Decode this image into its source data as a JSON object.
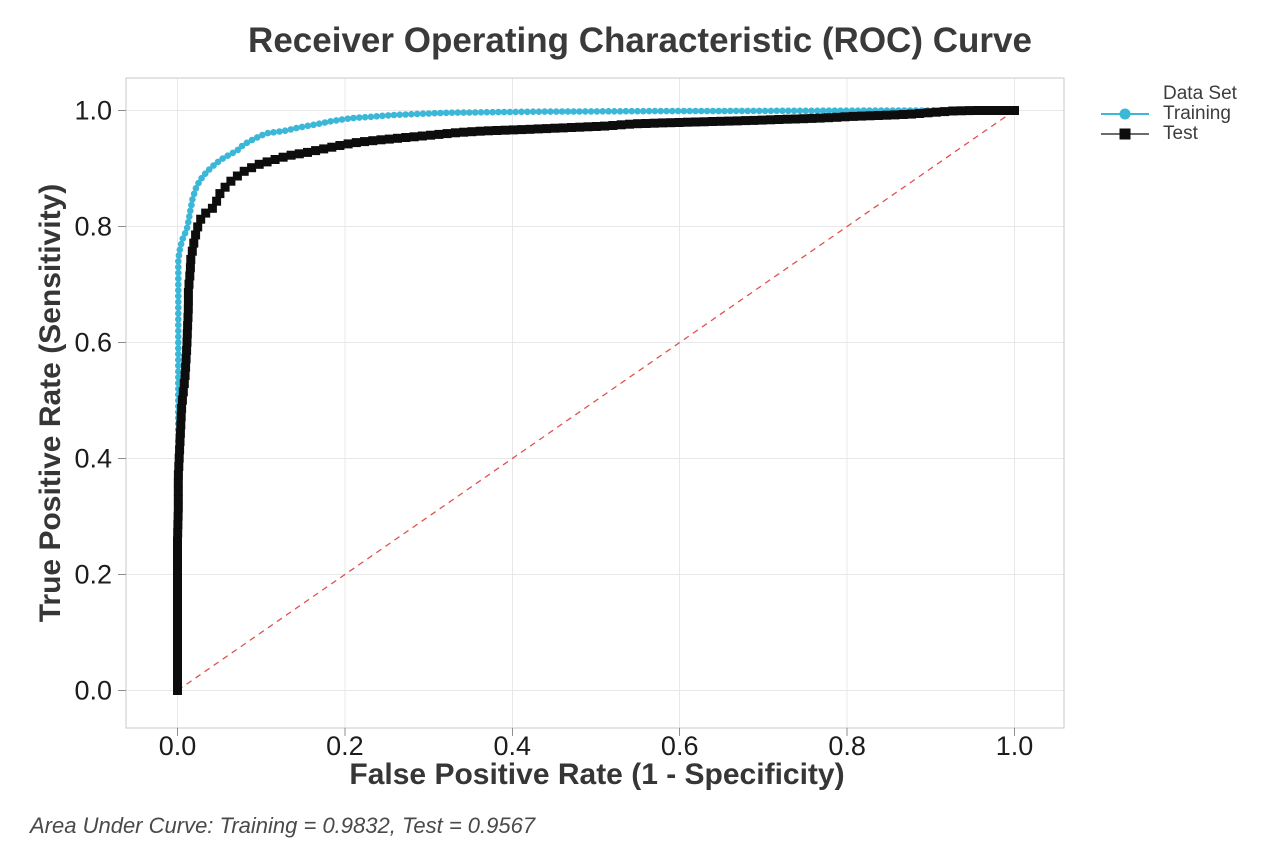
{
  "chart_data": {
    "type": "line",
    "title": "Receiver Operating Characteristic (ROC) Curve",
    "xlabel": "False Positive Rate (1 - Specificity)",
    "ylabel": "True Positive Rate (Sensitivity)",
    "xlim": [
      0,
      1
    ],
    "ylim": [
      0,
      1
    ],
    "grid": true,
    "x_ticks": {
      "values": [
        0,
        0.2,
        0.4,
        0.6,
        0.8,
        1.0
      ],
      "labels": [
        "0.0",
        "0.2",
        "0.4",
        "0.6",
        "0.8",
        "1.0"
      ]
    },
    "y_ticks": {
      "values": [
        0,
        0.2,
        0.4,
        0.6,
        0.8,
        1.0
      ],
      "labels": [
        "0.0",
        "0.2",
        "0.4",
        "0.6",
        "0.8",
        "1.0"
      ]
    },
    "legend": {
      "title": "Data Set",
      "position": "right",
      "items": [
        {
          "label": "Training",
          "marker": "circle",
          "color": "#3bb7d8",
          "line_color": "#3bb7d8"
        },
        {
          "label": "Test",
          "marker": "square",
          "color": "#0d0d0d",
          "line_color": "#3c3c3c"
        }
      ]
    },
    "reference_line": {
      "from": [
        0,
        0
      ],
      "to": [
        1,
        1
      ],
      "style": "dashed",
      "color": "#e05252"
    },
    "footnote": "Area Under Curve: Training = 0.9832, Test = 0.9567",
    "auc": {
      "Training": 0.9832,
      "Test": 0.9567
    },
    "series": [
      {
        "name": "Training",
        "marker": "circle",
        "color": "#3bb7d8",
        "line_color": "#3bb7d8",
        "points": [
          [
            0,
            0
          ],
          [
            0,
            0.08
          ],
          [
            0,
            0.16
          ],
          [
            0,
            0.24
          ],
          [
            0,
            0.32
          ],
          [
            0.001,
            0.4
          ],
          [
            0.001,
            0.48
          ],
          [
            0.001,
            0.55
          ],
          [
            0.001,
            0.62
          ],
          [
            0.001,
            0.68
          ],
          [
            0.001,
            0.74
          ],
          [
            0.002,
            0.755
          ],
          [
            0.004,
            0.768
          ],
          [
            0.006,
            0.778
          ],
          [
            0.009,
            0.788
          ],
          [
            0.012,
            0.8
          ],
          [
            0.015,
            0.825
          ],
          [
            0.018,
            0.848
          ],
          [
            0.022,
            0.866
          ],
          [
            0.027,
            0.88
          ],
          [
            0.033,
            0.891
          ],
          [
            0.039,
            0.9
          ],
          [
            0.048,
            0.911
          ],
          [
            0.056,
            0.919
          ],
          [
            0.065,
            0.926
          ],
          [
            0.072,
            0.932
          ],
          [
            0.078,
            0.94
          ],
          [
            0.086,
            0.947
          ],
          [
            0.093,
            0.952
          ],
          [
            0.1,
            0.957
          ],
          [
            0.108,
            0.961
          ],
          [
            0.118,
            0.963
          ],
          [
            0.128,
            0.965
          ],
          [
            0.14,
            0.969
          ],
          [
            0.15,
            0.972
          ],
          [
            0.161,
            0.975
          ],
          [
            0.172,
            0.978
          ],
          [
            0.185,
            0.982
          ],
          [
            0.209,
            0.987
          ],
          [
            0.23,
            0.989
          ],
          [
            0.255,
            0.992
          ],
          [
            0.285,
            0.994
          ],
          [
            0.32,
            0.996
          ],
          [
            0.37,
            0.997
          ],
          [
            0.43,
            0.998
          ],
          [
            0.5,
            0.9985
          ],
          [
            0.58,
            0.999
          ],
          [
            0.68,
            0.9993
          ],
          [
            0.78,
            0.9996
          ],
          [
            0.88,
            1
          ],
          [
            1,
            1
          ]
        ]
      },
      {
        "name": "Test",
        "marker": "square",
        "color": "#0d0d0d",
        "line_color": "#3c3c3c",
        "points": [
          [
            0,
            0
          ],
          [
            0,
            0.07
          ],
          [
            0,
            0.14
          ],
          [
            0,
            0.2
          ],
          [
            0,
            0.26
          ],
          [
            0.001,
            0.32
          ],
          [
            0.001,
            0.37
          ],
          [
            0.002,
            0.4
          ],
          [
            0.003,
            0.43
          ],
          [
            0.004,
            0.46
          ],
          [
            0.005,
            0.49
          ],
          [
            0.007,
            0.515
          ],
          [
            0.009,
            0.54
          ],
          [
            0.01,
            0.565
          ],
          [
            0.011,
            0.59
          ],
          [
            0.012,
            0.625
          ],
          [
            0.013,
            0.66
          ],
          [
            0.013,
            0.69
          ],
          [
            0.015,
            0.72
          ],
          [
            0.016,
            0.745
          ],
          [
            0.018,
            0.76
          ],
          [
            0.02,
            0.775
          ],
          [
            0.023,
            0.795
          ],
          [
            0.027,
            0.81
          ],
          [
            0.03,
            0.82
          ],
          [
            0.036,
            0.825
          ],
          [
            0.041,
            0.83
          ],
          [
            0.045,
            0.838
          ],
          [
            0.051,
            0.858
          ],
          [
            0.057,
            0.868
          ],
          [
            0.065,
            0.88
          ],
          [
            0.078,
            0.894
          ],
          [
            0.095,
            0.906
          ],
          [
            0.113,
            0.914
          ],
          [
            0.132,
            0.922
          ],
          [
            0.156,
            0.928
          ],
          [
            0.185,
            0.937
          ],
          [
            0.209,
            0.944
          ],
          [
            0.24,
            0.949
          ],
          [
            0.27,
            0.953
          ],
          [
            0.3,
            0.957
          ],
          [
            0.335,
            0.962
          ],
          [
            0.37,
            0.965
          ],
          [
            0.41,
            0.967
          ],
          [
            0.46,
            0.97
          ],
          [
            0.51,
            0.973
          ],
          [
            0.545,
            0.977
          ],
          [
            0.59,
            0.979
          ],
          [
            0.64,
            0.981
          ],
          [
            0.69,
            0.983
          ],
          [
            0.73,
            0.985
          ],
          [
            0.77,
            0.987
          ],
          [
            0.81,
            0.99
          ],
          [
            0.85,
            0.992
          ],
          [
            0.88,
            0.994
          ],
          [
            0.905,
            0.997
          ],
          [
            0.925,
            0.999
          ],
          [
            0.95,
            1
          ],
          [
            1,
            1
          ]
        ]
      }
    ]
  }
}
